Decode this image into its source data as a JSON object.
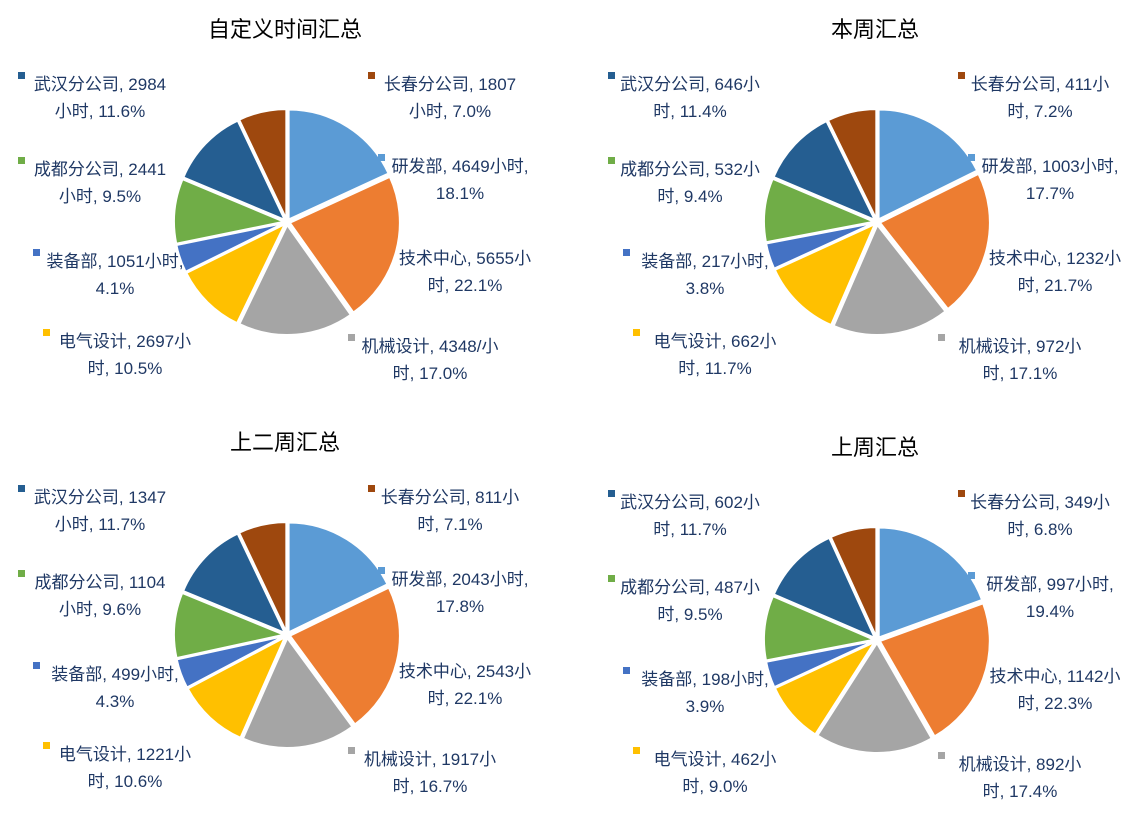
{
  "chart_data": [
    {
      "type": "pie",
      "title": "自定义时间汇总",
      "categories": [
        "研发部",
        "技术中心",
        "机械设计",
        "电气设计",
        "装备部",
        "成都分公司",
        "武汉分公司",
        "长春分公司"
      ],
      "values": [
        4649,
        5655,
        4348,
        2697,
        1051,
        2441,
        2984,
        1807
      ],
      "value_labels": [
        "研发部, 4649小时, 18.1%",
        "技术中心, 5655小时, 22.1%",
        "机械设计, 4348/小时, 17.0%",
        "电气设计, 2697小时, 10.5%",
        "装备部, 1051小时, 4.1%",
        "成都分公司, 2441小时, 9.5%",
        "武汉分公司, 2984小时, 11.6%",
        "长春分公司, 1807小时, 7.0%"
      ],
      "colors": [
        "#5b9bd5",
        "#ed7d31",
        "#a5a5a5",
        "#ffc000",
        "#4472c4",
        "#70ad47",
        "#255e91",
        "#9e480e"
      ]
    },
    {
      "type": "pie",
      "title": "本周汇总",
      "categories": [
        "研发部",
        "技术中心",
        "机械设计",
        "电气设计",
        "装备部",
        "成都分公司",
        "武汉分公司",
        "长春分公司"
      ],
      "values": [
        1003,
        1232,
        972,
        662,
        217,
        532,
        646,
        411
      ],
      "value_labels": [
        "研发部, 1003小时, 17.7%",
        "技术中心, 1232小时, 21.7%",
        "机械设计, 972小时, 17.1%",
        "电气设计, 662小时, 11.7%",
        "装备部, 217小时, 3.8%",
        "成都分公司, 532小时, 9.4%",
        "武汉分公司, 646小时, 11.4%",
        "长春分公司, 411小时, 7.2%"
      ],
      "colors": [
        "#5b9bd5",
        "#ed7d31",
        "#a5a5a5",
        "#ffc000",
        "#4472c4",
        "#70ad47",
        "#255e91",
        "#9e480e"
      ]
    },
    {
      "type": "pie",
      "title": "上二周汇总",
      "categories": [
        "研发部",
        "技术中心",
        "机械设计",
        "电气设计",
        "装备部",
        "成都分公司",
        "武汉分公司",
        "长春分公司"
      ],
      "values": [
        2043,
        2543,
        1917,
        1221,
        499,
        1104,
        1347,
        811
      ],
      "value_labels": [
        "研发部, 2043小时, 17.8%",
        "技术中心, 2543小时, 22.1%",
        "机械设计, 1917小时, 16.7%",
        "电气设计, 1221小时, 10.6%",
        "装备部, 499小时, 4.3%",
        "成都分公司, 1104小时, 9.6%",
        "武汉分公司, 1347小时, 11.7%",
        "长春分公司, 811小时, 7.1%"
      ],
      "colors": [
        "#5b9bd5",
        "#ed7d31",
        "#a5a5a5",
        "#ffc000",
        "#4472c4",
        "#70ad47",
        "#255e91",
        "#9e480e"
      ]
    },
    {
      "type": "pie",
      "title": "上周汇总",
      "categories": [
        "研发部",
        "技术中心",
        "机械设计",
        "电气设计",
        "装备部",
        "成都分公司",
        "武汉分公司",
        "长春分公司"
      ],
      "values": [
        997,
        1142,
        892,
        462,
        198,
        487,
        602,
        349
      ],
      "value_labels": [
        "研发部, 997小时, 19.4%",
        "技术中心, 1142小时, 22.3%",
        "机械设计, 892小时, 17.4%",
        "电气设计, 462小时, 9.0%",
        "装备部, 198小时, 3.9%",
        "成都分公司, 487小时, 9.5%",
        "武汉分公司, 602小时, 11.7%",
        "长春分公司, 349小时, 6.8%"
      ],
      "colors": [
        "#5b9bd5",
        "#ed7d31",
        "#a5a5a5",
        "#ffc000",
        "#4472c4",
        "#70ad47",
        "#255e91",
        "#9e480e"
      ]
    }
  ]
}
